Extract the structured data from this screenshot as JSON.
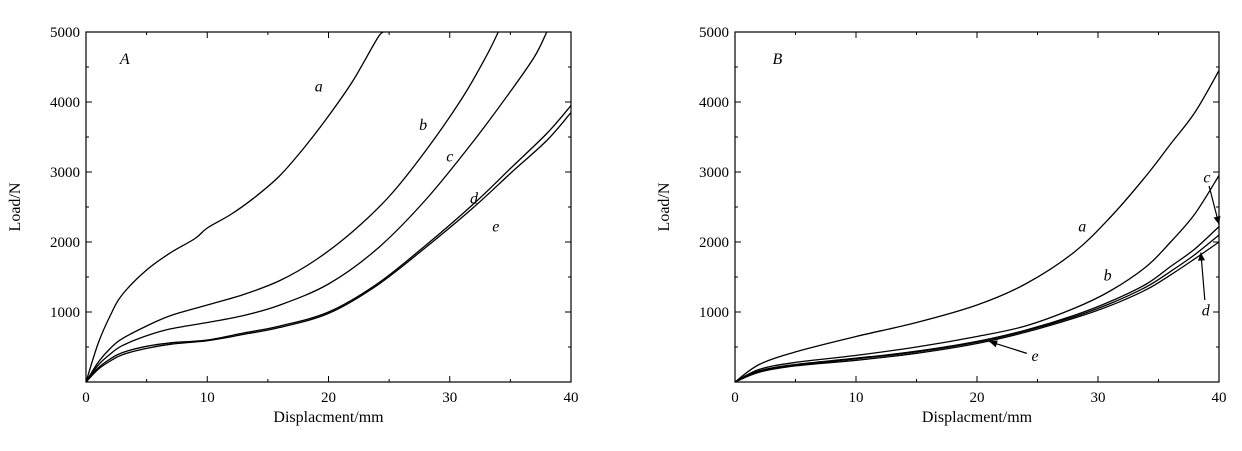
{
  "chart_data": [
    {
      "type": "line",
      "panel_label": "A",
      "xlabel": "Displacment/mm",
      "ylabel": "Load/N",
      "xlim": [
        0,
        40
      ],
      "ylim": [
        0,
        5000
      ],
      "xticks": [
        "0",
        "10",
        "20",
        "30",
        "40"
      ],
      "yticks": [
        "1000",
        "2000",
        "3000",
        "4000",
        "5000"
      ],
      "grid": false,
      "series": [
        {
          "name": "a",
          "x": [
            0,
            1,
            2,
            3,
            5,
            7,
            9,
            10,
            12,
            14,
            16,
            18,
            20,
            22,
            24,
            24.5
          ],
          "y": [
            0,
            550,
            950,
            1250,
            1600,
            1850,
            2050,
            2200,
            2400,
            2650,
            2950,
            3350,
            3800,
            4300,
            4900,
            5000
          ]
        },
        {
          "name": "b",
          "x": [
            0,
            1,
            2,
            3,
            5,
            7,
            10,
            13,
            16,
            19,
            22,
            25,
            28,
            31,
            33,
            34
          ],
          "y": [
            0,
            280,
            480,
            620,
            800,
            950,
            1100,
            1250,
            1450,
            1750,
            2150,
            2650,
            3300,
            4050,
            4650,
            5000
          ]
        },
        {
          "name": "c",
          "x": [
            0,
            1,
            2,
            3,
            5,
            7,
            10,
            13,
            16,
            20,
            24,
            28,
            32,
            35,
            37,
            38
          ],
          "y": [
            0,
            240,
            400,
            520,
            660,
            760,
            850,
            950,
            1100,
            1400,
            1900,
            2600,
            3450,
            4150,
            4650,
            5000
          ]
        },
        {
          "name": "d",
          "x": [
            0,
            1,
            2,
            3,
            5,
            7,
            10,
            13,
            16,
            20,
            24,
            28,
            32,
            35,
            38,
            40
          ],
          "y": [
            0,
            200,
            330,
            420,
            510,
            560,
            600,
            700,
            800,
            1000,
            1400,
            1950,
            2550,
            3050,
            3550,
            3950
          ]
        },
        {
          "name": "e",
          "x": [
            0,
            1,
            2,
            3,
            5,
            7,
            10,
            13,
            16,
            20,
            24,
            28,
            32,
            35,
            38,
            40
          ],
          "y": [
            0,
            180,
            300,
            390,
            480,
            540,
            590,
            680,
            780,
            980,
            1380,
            1920,
            2500,
            2980,
            3450,
            3850
          ]
        }
      ],
      "annotations": [
        {
          "text": "a",
          "x": 19.2,
          "y": 4150
        },
        {
          "text": "b",
          "x": 27.8,
          "y": 3600
        },
        {
          "text": "c",
          "x": 30,
          "y": 3150
        },
        {
          "text": "d",
          "x": 32,
          "y": 2550
        },
        {
          "text": "e",
          "x": 33.8,
          "y": 2150
        }
      ]
    },
    {
      "type": "line",
      "panel_label": "B",
      "xlabel": "Displacment/mm",
      "ylabel": "Load/N",
      "xlim": [
        0,
        40
      ],
      "ylim": [
        0,
        5000
      ],
      "xticks": [
        "0",
        "10",
        "20",
        "30",
        "40"
      ],
      "yticks": [
        "1000",
        "2000",
        "3000",
        "4000",
        "5000"
      ],
      "grid": false,
      "series": [
        {
          "name": "a",
          "x": [
            0,
            2,
            5,
            10,
            15,
            20,
            24,
            28,
            31,
            34,
            36,
            38,
            40
          ],
          "y": [
            0,
            250,
            430,
            650,
            850,
            1100,
            1400,
            1850,
            2350,
            2950,
            3400,
            3850,
            4450
          ]
        },
        {
          "name": "b",
          "x": [
            0,
            2,
            5,
            10,
            15,
            20,
            24,
            28,
            31,
            34,
            36,
            38,
            40
          ],
          "y": [
            0,
            180,
            280,
            380,
            500,
            650,
            800,
            1050,
            1300,
            1650,
            2000,
            2400,
            2950
          ]
        },
        {
          "name": "c",
          "x": [
            0,
            2,
            5,
            10,
            15,
            20,
            24,
            28,
            31,
            34,
            36,
            38,
            40
          ],
          "y": [
            0,
            160,
            250,
            340,
            440,
            580,
            740,
            950,
            1150,
            1400,
            1650,
            1900,
            2220
          ]
        },
        {
          "name": "d",
          "x": [
            0,
            2,
            5,
            10,
            15,
            20,
            24,
            28,
            31,
            34,
            36,
            38,
            40
          ],
          "y": [
            0,
            150,
            240,
            330,
            430,
            570,
            730,
            930,
            1120,
            1360,
            1580,
            1820,
            2100
          ]
        },
        {
          "name": "e",
          "x": [
            0,
            2,
            5,
            10,
            15,
            20,
            24,
            28,
            31,
            34,
            36,
            38,
            40
          ],
          "y": [
            0,
            140,
            230,
            310,
            410,
            550,
            710,
            910,
            1090,
            1320,
            1530,
            1760,
            2000
          ]
        }
      ],
      "annotations": [
        {
          "text": "a",
          "x": 28.7,
          "y": 2150,
          "arrow_to": null
        },
        {
          "text": "b",
          "x": 30.8,
          "y": 1450,
          "arrow_to": null
        },
        {
          "text": "c",
          "x": 39,
          "y": 2850,
          "arrow_to": [
            40,
            2250
          ]
        },
        {
          "text": "d",
          "x": 38.9,
          "y": 950,
          "arrow_to": [
            38.5,
            1850
          ]
        },
        {
          "text": "e",
          "x": 24.8,
          "y": 300,
          "arrow_to": [
            21,
            580
          ]
        }
      ]
    }
  ]
}
